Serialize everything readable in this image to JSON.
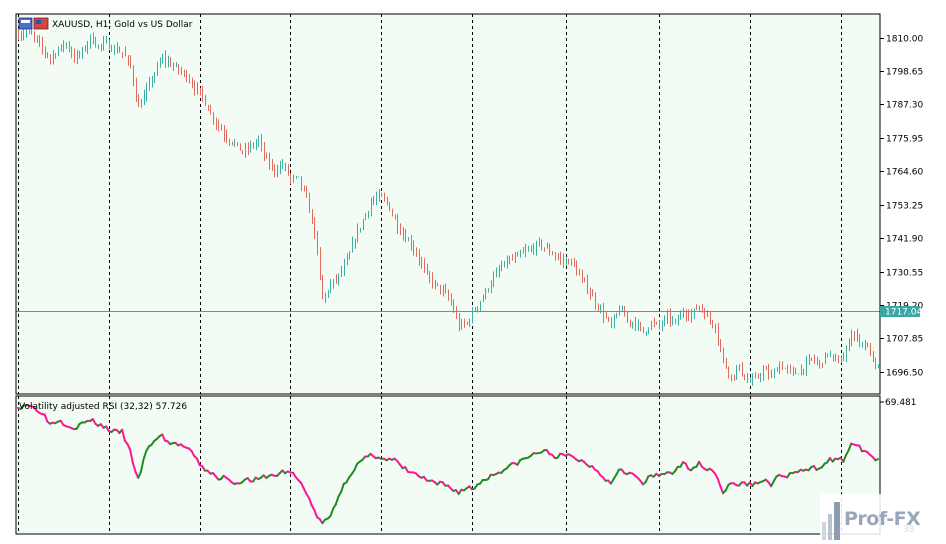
{
  "header": {
    "symbol_line": "XAUUSD, H1:  Gold vs US Dollar"
  },
  "indicator": {
    "label": "Volatility adjusted RSI (32,32) 57.726",
    "top_value": "69.481",
    "bottom_value": "38",
    "up_color": "#228b22",
    "down_color": "#ff1493"
  },
  "logo": {
    "text": "Prof-FX"
  },
  "colors": {
    "background": "#f3fcf4",
    "bull_candle": "#3cb0a0",
    "bear_candle": "#e06b5e",
    "current_price_line": "#3aa7a6",
    "grid": "#000000"
  },
  "chart_data": {
    "type": "candlestick",
    "title": "XAUUSD, H1:  Gold vs US Dollar",
    "price_axis_ticks": [
      1810.0,
      1798.65,
      1787.3,
      1775.95,
      1764.6,
      1753.25,
      1741.9,
      1730.55,
      1719.2,
      1707.85,
      1696.5
    ],
    "price_axis_labels": [
      "1810.00",
      "1798.65",
      "1787.30",
      "1775.95",
      "1764.60",
      "1753.25",
      "1741.90",
      "1730.55",
      "1719.20",
      "1707.85",
      "1696.50"
    ],
    "ylim": [
      1689.0,
      1818.0
    ],
    "current_price": 1717.04,
    "current_price_label": "1717.04",
    "close_path": [
      [
        0,
        1811
      ],
      [
        3,
        1812
      ],
      [
        6,
        1810
      ],
      [
        9,
        1806
      ],
      [
        12,
        1803
      ],
      [
        15,
        1806
      ],
      [
        18,
        1808
      ],
      [
        21,
        1803
      ],
      [
        24,
        1805
      ],
      [
        27,
        1810
      ],
      [
        30,
        1807
      ],
      [
        33,
        1808
      ],
      [
        36,
        1806
      ],
      [
        39,
        1805
      ],
      [
        42,
        1800
      ],
      [
        45,
        1786
      ],
      [
        48,
        1792
      ],
      [
        51,
        1798
      ],
      [
        54,
        1803
      ],
      [
        57,
        1801
      ],
      [
        60,
        1799
      ],
      [
        63,
        1797
      ],
      [
        66,
        1793
      ],
      [
        69,
        1790
      ],
      [
        72,
        1784
      ],
      [
        75,
        1780
      ],
      [
        78,
        1776
      ],
      [
        81,
        1774
      ],
      [
        84,
        1771
      ],
      [
        87,
        1773
      ],
      [
        90,
        1775
      ],
      [
        93,
        1768
      ],
      [
        96,
        1765
      ],
      [
        99,
        1767
      ],
      [
        102,
        1762
      ],
      [
        105,
        1762
      ],
      [
        108,
        1755
      ],
      [
        111,
        1744
      ],
      [
        114,
        1721
      ],
      [
        117,
        1726
      ],
      [
        120,
        1729
      ],
      [
        123,
        1734
      ],
      [
        126,
        1742
      ],
      [
        129,
        1748
      ],
      [
        132,
        1754
      ],
      [
        135,
        1756
      ],
      [
        138,
        1754
      ],
      [
        141,
        1748
      ],
      [
        144,
        1743
      ],
      [
        147,
        1740
      ],
      [
        150,
        1735
      ],
      [
        153,
        1729
      ],
      [
        156,
        1726
      ],
      [
        159,
        1724
      ],
      [
        162,
        1720
      ],
      [
        165,
        1712
      ],
      [
        168,
        1713
      ],
      [
        171,
        1718
      ],
      [
        174,
        1722
      ],
      [
        177,
        1727
      ],
      [
        180,
        1731
      ],
      [
        183,
        1734
      ],
      [
        186,
        1735
      ],
      [
        189,
        1737
      ],
      [
        192,
        1738
      ],
      [
        195,
        1740
      ],
      [
        198,
        1738
      ],
      [
        201,
        1736
      ],
      [
        204,
        1734
      ],
      [
        207,
        1734
      ],
      [
        210,
        1729
      ],
      [
        213,
        1725
      ],
      [
        216,
        1720
      ],
      [
        219,
        1716
      ],
      [
        222,
        1712
      ],
      [
        225,
        1718
      ],
      [
        228,
        1714
      ],
      [
        231,
        1713
      ],
      [
        234,
        1710
      ],
      [
        237,
        1713
      ],
      [
        240,
        1712
      ],
      [
        243,
        1715
      ],
      [
        246,
        1713
      ],
      [
        249,
        1717
      ],
      [
        252,
        1716
      ],
      [
        255,
        1719
      ],
      [
        258,
        1715
      ],
      [
        261,
        1712
      ],
      [
        264,
        1700
      ],
      [
        267,
        1695
      ],
      [
        270,
        1698
      ],
      [
        273,
        1693
      ],
      [
        276,
        1694
      ],
      [
        279,
        1697
      ],
      [
        282,
        1695
      ],
      [
        285,
        1699
      ],
      [
        288,
        1697
      ],
      [
        291,
        1696
      ],
      [
        294,
        1698
      ],
      [
        297,
        1701
      ],
      [
        300,
        1699
      ],
      [
        303,
        1703
      ],
      [
        306,
        1700
      ],
      [
        309,
        1701
      ],
      [
        312,
        1710
      ],
      [
        315,
        1707
      ],
      [
        318,
        1705
      ],
      [
        321,
        1698
      ]
    ],
    "indicator_ylim": [
      38,
      69.481
    ],
    "indicator_path": [
      [
        0,
        68
      ],
      [
        3,
        69
      ],
      [
        6,
        68
      ],
      [
        9,
        67
      ],
      [
        12,
        64
      ],
      [
        15,
        65
      ],
      [
        18,
        64
      ],
      [
        21,
        63
      ],
      [
        24,
        64
      ],
      [
        27,
        65
      ],
      [
        30,
        64
      ],
      [
        33,
        63
      ],
      [
        36,
        62
      ],
      [
        39,
        62
      ],
      [
        42,
        57
      ],
      [
        45,
        50
      ],
      [
        48,
        57
      ],
      [
        51,
        60
      ],
      [
        54,
        61
      ],
      [
        57,
        59
      ],
      [
        60,
        59
      ],
      [
        63,
        58
      ],
      [
        66,
        56
      ],
      [
        69,
        53
      ],
      [
        72,
        52
      ],
      [
        75,
        50
      ],
      [
        78,
        51
      ],
      [
        81,
        49
      ],
      [
        84,
        50
      ],
      [
        87,
        50
      ],
      [
        90,
        50
      ],
      [
        93,
        51
      ],
      [
        96,
        51
      ],
      [
        99,
        52
      ],
      [
        102,
        52
      ],
      [
        105,
        50
      ],
      [
        108,
        47
      ],
      [
        111,
        42
      ],
      [
        114,
        39
      ],
      [
        117,
        41
      ],
      [
        120,
        46
      ],
      [
        123,
        50
      ],
      [
        126,
        53
      ],
      [
        129,
        55
      ],
      [
        132,
        56
      ],
      [
        135,
        56
      ],
      [
        138,
        55
      ],
      [
        141,
        55
      ],
      [
        144,
        53
      ],
      [
        147,
        52
      ],
      [
        150,
        51
      ],
      [
        153,
        50
      ],
      [
        156,
        49
      ],
      [
        159,
        49
      ],
      [
        162,
        48
      ],
      [
        165,
        47
      ],
      [
        168,
        48
      ],
      [
        171,
        48
      ],
      [
        174,
        50
      ],
      [
        177,
        51
      ],
      [
        180,
        52
      ],
      [
        183,
        53
      ],
      [
        186,
        54
      ],
      [
        189,
        55
      ],
      [
        192,
        56
      ],
      [
        195,
        57
      ],
      [
        198,
        57
      ],
      [
        201,
        56
      ],
      [
        204,
        56
      ],
      [
        207,
        56
      ],
      [
        210,
        55
      ],
      [
        213,
        54
      ],
      [
        216,
        53
      ],
      [
        219,
        51
      ],
      [
        222,
        49
      ],
      [
        225,
        53
      ],
      [
        228,
        52
      ],
      [
        231,
        51
      ],
      [
        234,
        49
      ],
      [
        237,
        51
      ],
      [
        240,
        51
      ],
      [
        243,
        52
      ],
      [
        246,
        52
      ],
      [
        249,
        54
      ],
      [
        252,
        53
      ],
      [
        255,
        54
      ],
      [
        258,
        53
      ],
      [
        261,
        52
      ],
      [
        264,
        47
      ],
      [
        267,
        49
      ],
      [
        270,
        49
      ],
      [
        273,
        49
      ],
      [
        276,
        49
      ],
      [
        279,
        50
      ],
      [
        282,
        49
      ],
      [
        285,
        51
      ],
      [
        288,
        51
      ],
      [
        291,
        52
      ],
      [
        294,
        52
      ],
      [
        297,
        53
      ],
      [
        300,
        53
      ],
      [
        303,
        55
      ],
      [
        306,
        55
      ],
      [
        309,
        55
      ],
      [
        312,
        59
      ],
      [
        315,
        58
      ],
      [
        318,
        57
      ],
      [
        321,
        55
      ]
    ],
    "bar_count": 323,
    "separator_bars": [
      0,
      34,
      68,
      102,
      136,
      170,
      205,
      240,
      274,
      308
    ]
  }
}
